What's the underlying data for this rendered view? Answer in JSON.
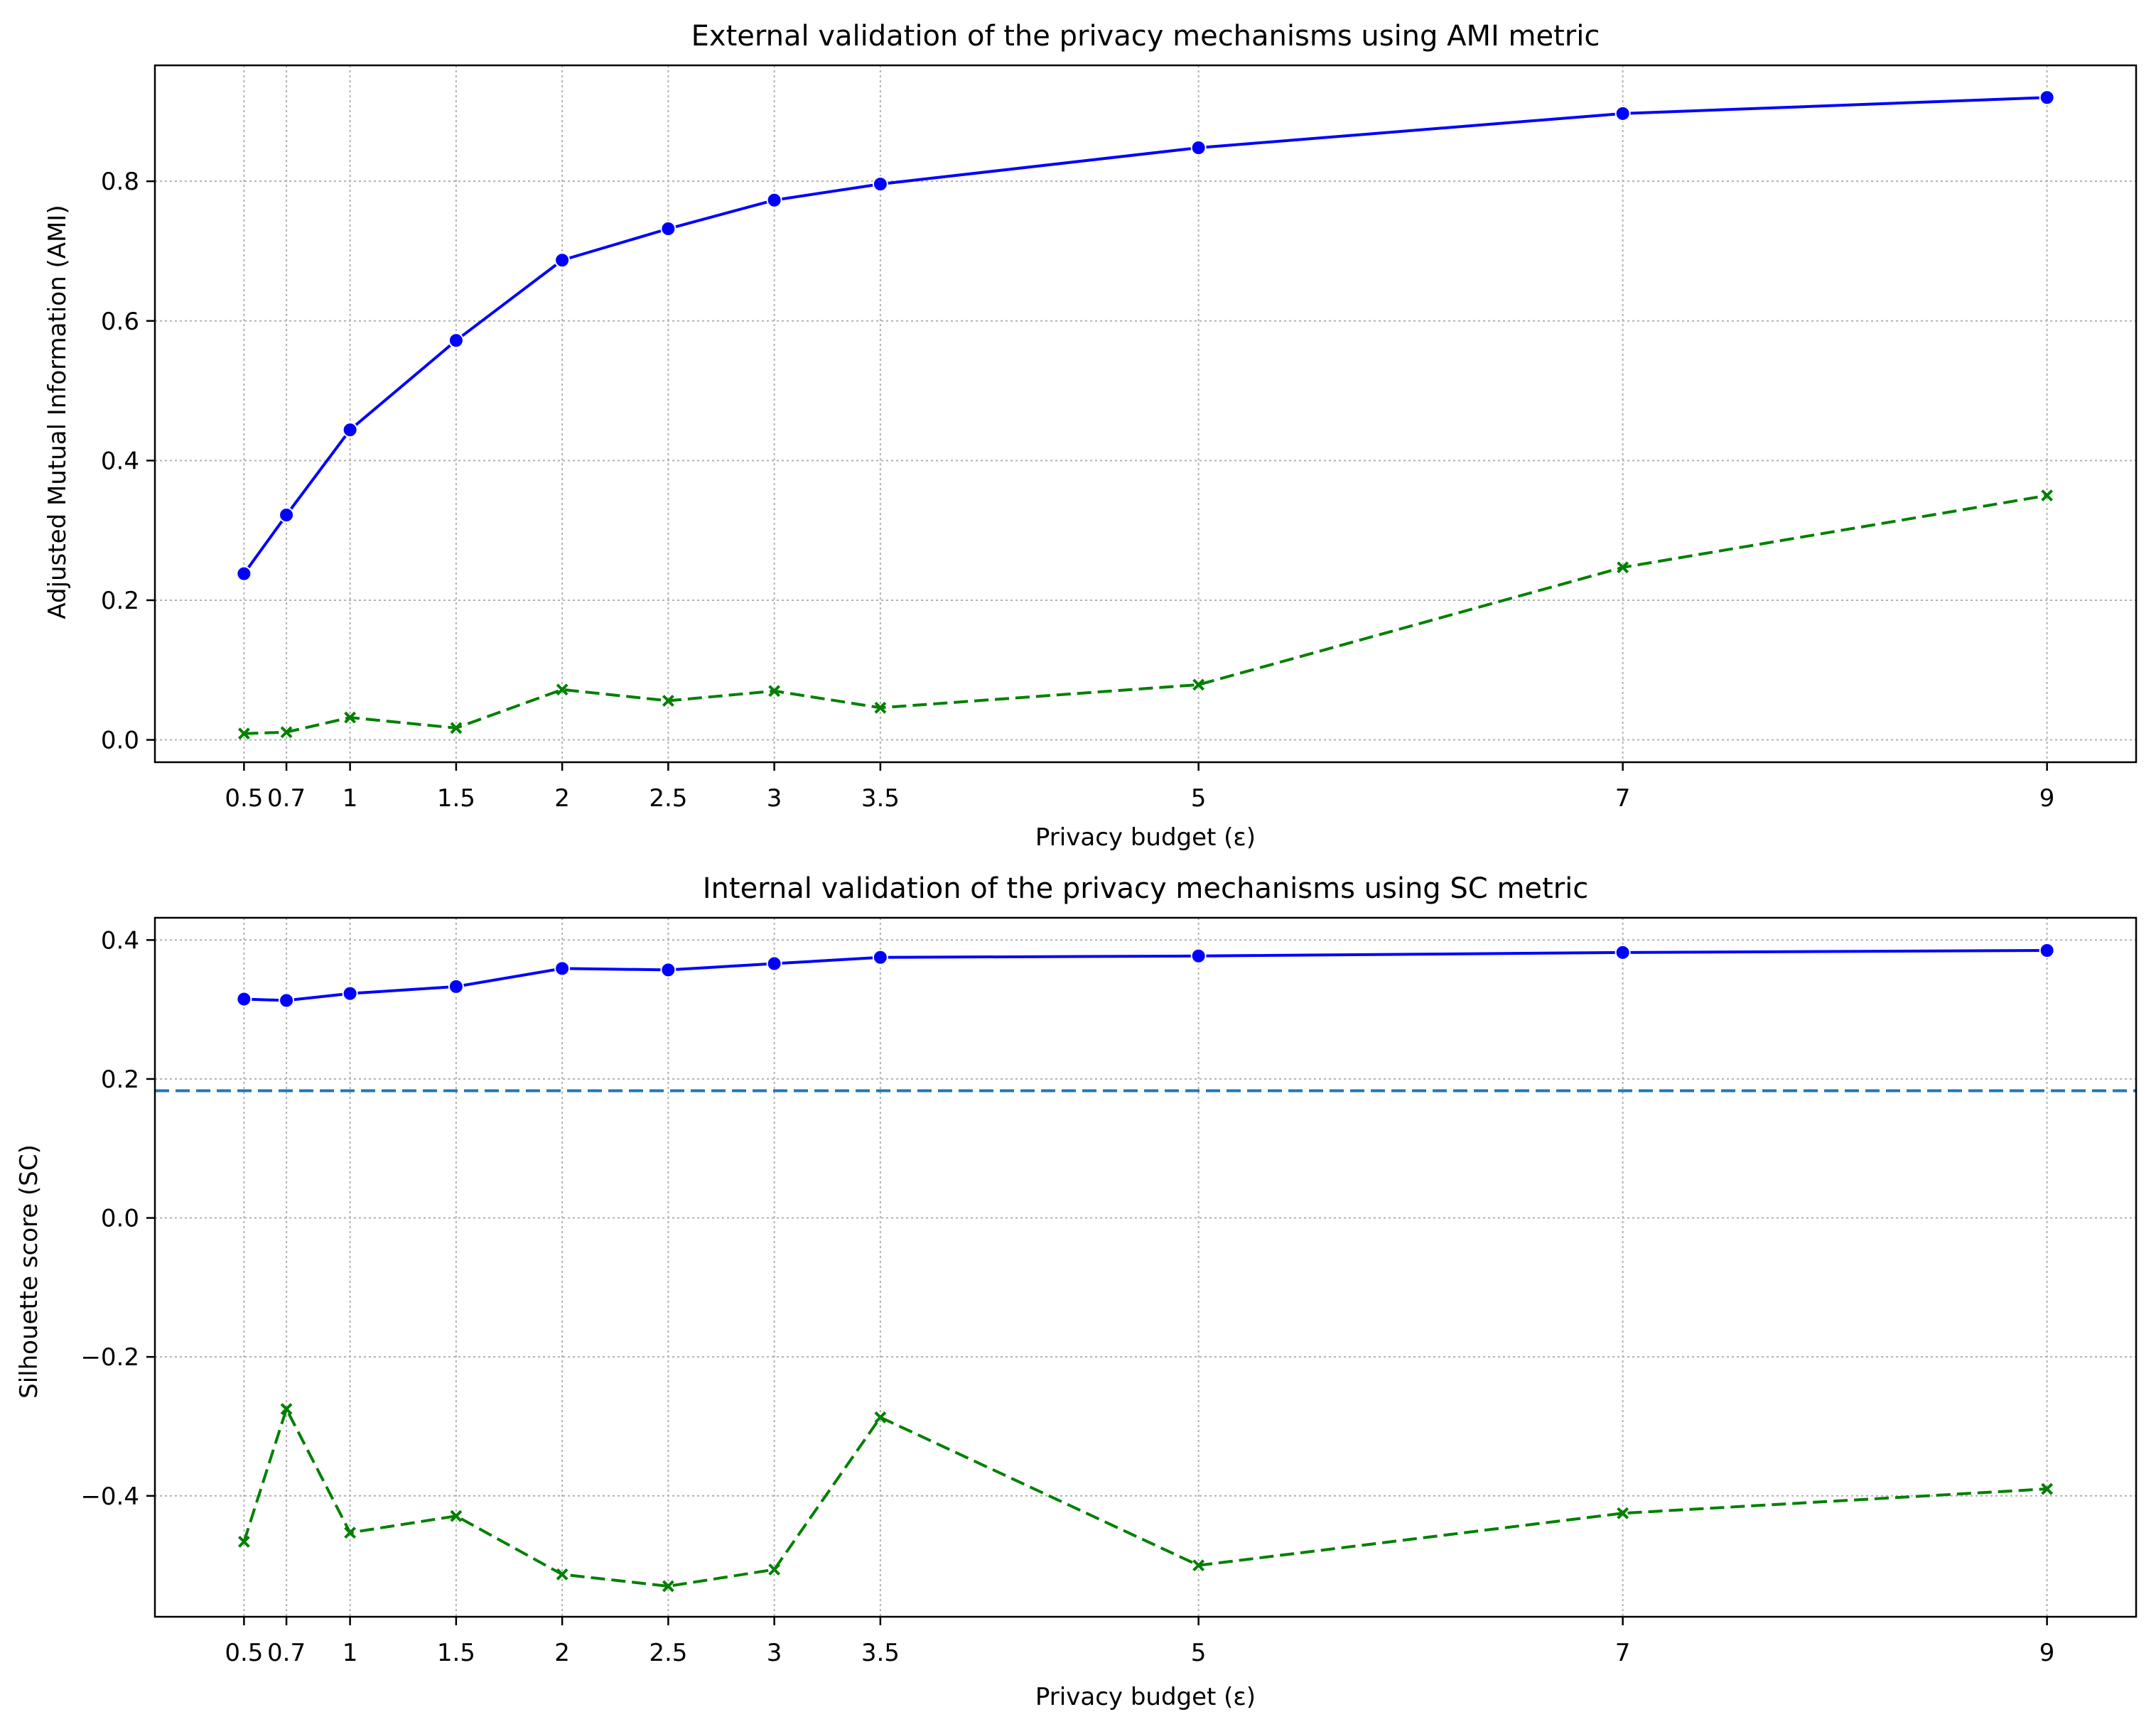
{
  "chart_data": [
    {
      "type": "line",
      "title": "External validation of the privacy mechanisms using AMI metric",
      "xlabel": "Privacy budget (ε)",
      "ylabel": "Adjusted Mutual Information (AMI)",
      "x": [
        0.5,
        0.7,
        1,
        1.5,
        2,
        2.5,
        3,
        3.5,
        5,
        7,
        9
      ],
      "x_tick_labels": [
        "0.5",
        "0.7",
        "1",
        "1.5",
        "2",
        "2.5",
        "3",
        "3.5",
        "5",
        "7",
        "9"
      ],
      "xlim": [
        0.08,
        9.42
      ],
      "ylim": [
        -0.032,
        0.966
      ],
      "y_ticks": [
        0.0,
        0.2,
        0.4,
        0.6,
        0.8
      ],
      "y_tick_labels": [
        "0.0",
        "0.2",
        "0.4",
        "0.6",
        "0.8"
      ],
      "grid": true,
      "series": [
        {
          "color": "#0000ff",
          "style": "solid",
          "marker": "circle",
          "values": [
            0.238,
            0.322,
            0.444,
            0.572,
            0.687,
            0.732,
            0.773,
            0.796,
            0.848,
            0.897,
            0.92
          ]
        },
        {
          "color": "#008000",
          "style": "dashed",
          "marker": "x",
          "values": [
            0.009,
            0.011,
            0.032,
            0.017,
            0.072,
            0.056,
            0.07,
            0.046,
            0.079,
            0.247,
            0.35
          ]
        }
      ]
    },
    {
      "type": "line",
      "title": "Internal validation of the privacy mechanisms using SC metric",
      "xlabel": "Privacy budget (ε)",
      "ylabel": "Silhouette score (SC)",
      "x": [
        0.5,
        0.7,
        1,
        1.5,
        2,
        2.5,
        3,
        3.5,
        5,
        7,
        9
      ],
      "x_tick_labels": [
        "0.5",
        "0.7",
        "1",
        "1.5",
        "2",
        "2.5",
        "3",
        "3.5",
        "5",
        "7",
        "9"
      ],
      "xlim": [
        0.08,
        9.42
      ],
      "ylim": [
        -0.574,
        0.432
      ],
      "y_ticks": [
        -0.4,
        -0.2,
        0.0,
        0.2,
        0.4
      ],
      "y_tick_labels": [
        "−0.4",
        "−0.2",
        "0.0",
        "0.2",
        "0.4"
      ],
      "grid": true,
      "reference_line": {
        "y": 0.183,
        "color": "#1f77b4",
        "style": "dashed"
      },
      "series": [
        {
          "color": "#0000ff",
          "style": "solid",
          "marker": "circle",
          "values": [
            0.315,
            0.313,
            0.323,
            0.333,
            0.359,
            0.357,
            0.366,
            0.375,
            0.377,
            0.382,
            0.385
          ]
        },
        {
          "color": "#008000",
          "style": "dashed",
          "marker": "x",
          "values": [
            -0.466,
            -0.275,
            -0.453,
            -0.429,
            -0.513,
            -0.53,
            -0.506,
            -0.287,
            -0.5,
            -0.425,
            -0.39
          ]
        }
      ]
    }
  ]
}
